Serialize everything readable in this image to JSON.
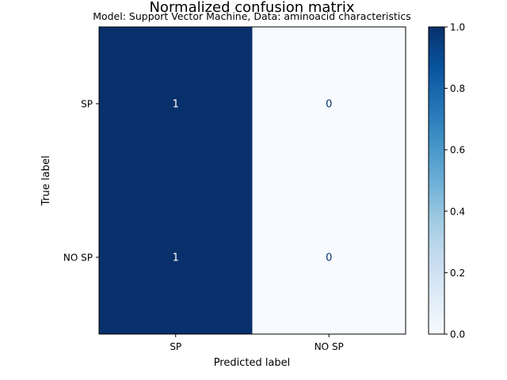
{
  "chart_data": {
    "type": "heatmap",
    "title": "Normalized confusion matrix",
    "subtitle": "Model: Support Vector Machine, Data: aminoacid characteristics",
    "xlabel": "Predicted label",
    "ylabel": "True label",
    "x_categories": [
      "SP",
      "NO SP"
    ],
    "y_categories": [
      "SP",
      "NO SP"
    ],
    "values": [
      [
        1,
        0
      ],
      [
        1,
        0
      ]
    ],
    "cell_labels": [
      [
        "1",
        "0"
      ],
      [
        "1",
        "0"
      ]
    ],
    "colormap": "Blues",
    "color_low": "#f7fbff",
    "color_high": "#08306b",
    "colorbar": {
      "range": [
        0.0,
        1.0
      ],
      "ticks": [
        0.0,
        0.2,
        0.4,
        0.6,
        0.8,
        1.0
      ],
      "tick_labels": [
        "0.0",
        "0.2",
        "0.4",
        "0.6",
        "0.8",
        "1.0"
      ]
    }
  }
}
